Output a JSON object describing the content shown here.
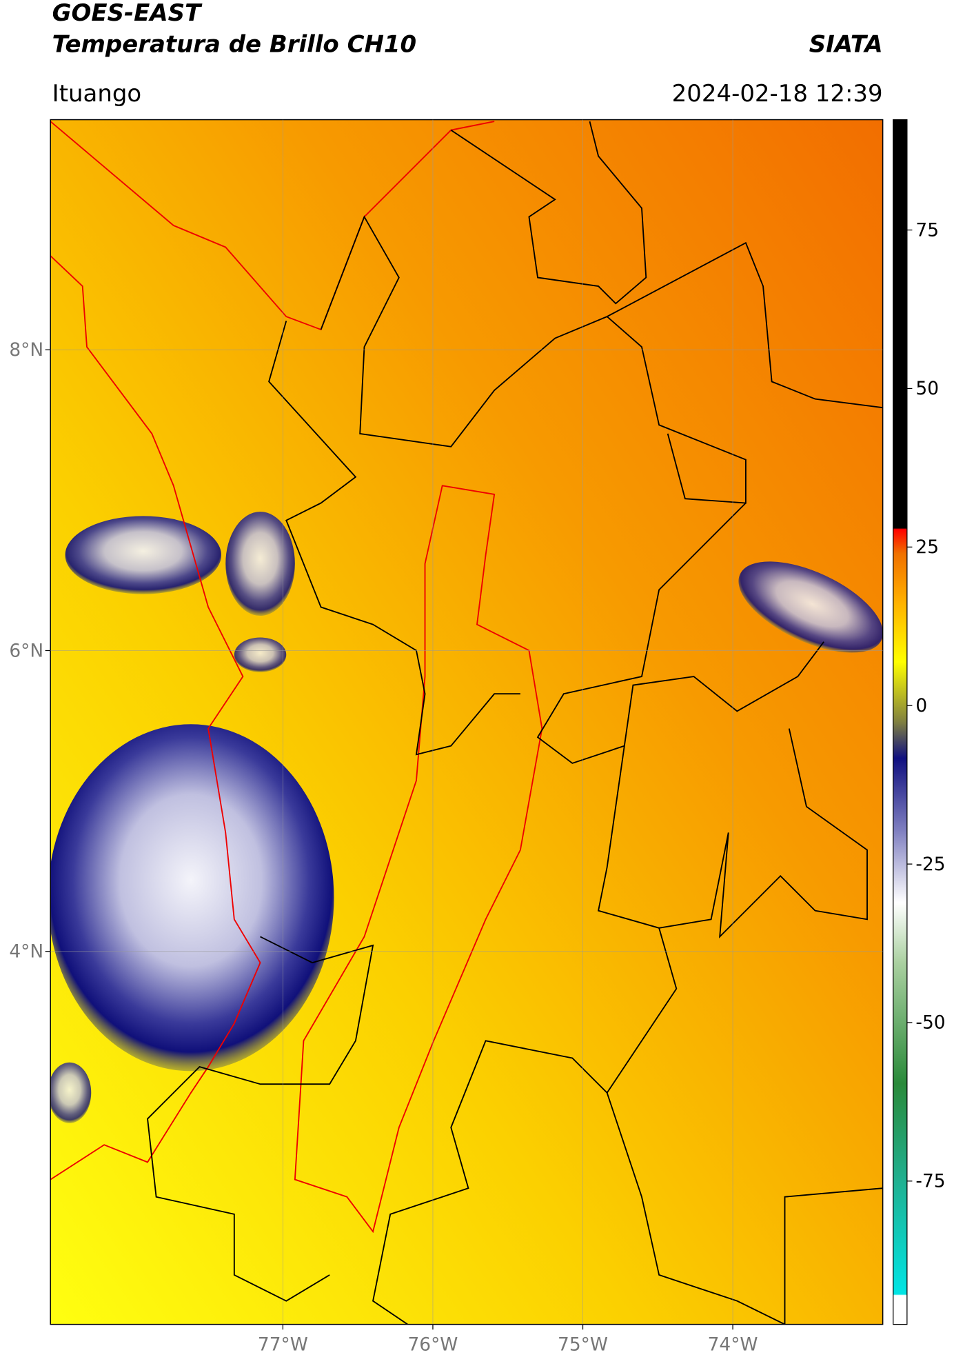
{
  "header": {
    "title": "GOES-EAST",
    "subtitle": "Temperatura de Brillo CH10",
    "agency": "SIATA",
    "location": "Ituango",
    "datetime": "2024-02-18 12:39"
  },
  "map": {
    "xlim": [
      -78.55,
      -73.0
    ],
    "ylim": [
      1.52,
      9.53
    ],
    "xticks": [
      {
        "value": -77,
        "label": "77°W"
      },
      {
        "value": -76,
        "label": "76°W"
      },
      {
        "value": -75,
        "label": "75°W"
      },
      {
        "value": -74,
        "label": "74°W"
      }
    ],
    "yticks": [
      {
        "value": 8,
        "label": "8°N"
      },
      {
        "value": 6,
        "label": "6°N"
      },
      {
        "value": 4,
        "label": "4°N"
      }
    ],
    "grid": true
  },
  "colorbar": {
    "clim": [
      -97.6,
      92.4
    ],
    "ticks": [
      75,
      50,
      25,
      0,
      -25,
      -50,
      -75
    ]
  }
}
